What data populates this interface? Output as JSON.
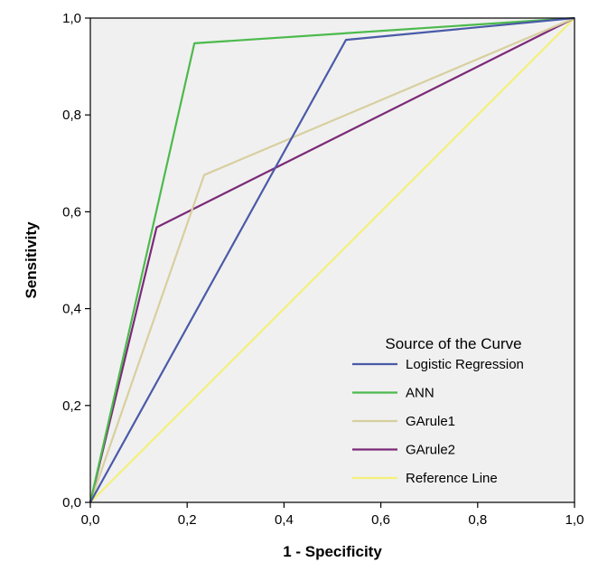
{
  "chart_data": {
    "type": "line",
    "xlabel": "1 - Specificity",
    "ylabel": "Sensitivity",
    "xlim": [
      0,
      1
    ],
    "ylim": [
      0,
      1
    ],
    "x_ticks": [
      "0,0",
      "0,2",
      "0,4",
      "0,6",
      "0,8",
      "1,0"
    ],
    "y_ticks": [
      "0,0",
      "0,2",
      "0,4",
      "0,6",
      "0,8",
      "1,0"
    ],
    "plot_background": "#f0f0f0",
    "grid": false,
    "legend": {
      "title": "Source of the Curve",
      "placement": "lower-right"
    },
    "series": [
      {
        "name": "Logistic Regression",
        "color": "#4a5aa8",
        "points": [
          [
            0,
            0
          ],
          [
            0.528,
            0.955
          ],
          [
            1,
            1
          ]
        ]
      },
      {
        "name": "ANN",
        "color": "#4cba4c",
        "points": [
          [
            0,
            0
          ],
          [
            0.215,
            0.948
          ],
          [
            1,
            1
          ]
        ]
      },
      {
        "name": "GArule1",
        "color": "#d8cf9f",
        "points": [
          [
            0,
            0
          ],
          [
            0.235,
            0.676
          ],
          [
            1,
            1
          ]
        ]
      },
      {
        "name": "GArule2",
        "color": "#7b2a78",
        "points": [
          [
            0,
            0
          ],
          [
            0.137,
            0.568
          ],
          [
            1,
            1
          ]
        ]
      },
      {
        "name": "Reference Line",
        "color": "#f4f07a",
        "points": [
          [
            0,
            0
          ],
          [
            1,
            1
          ]
        ]
      }
    ]
  }
}
